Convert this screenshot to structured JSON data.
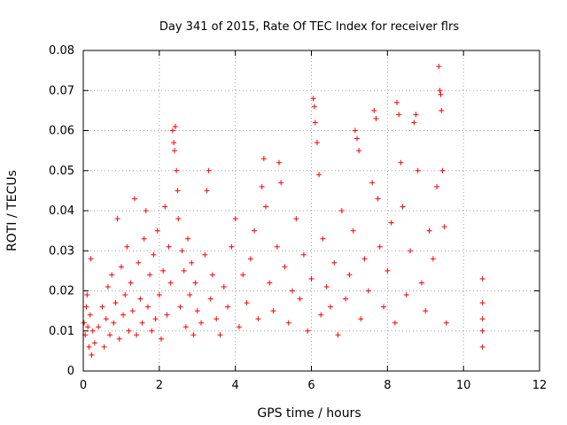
{
  "chart_data": {
    "type": "scatter",
    "title": "Day 341 of 2015, Rate Of TEC Index for receiver flrs",
    "xlabel": "GPS time / hours",
    "ylabel": "ROTI / TECUs",
    "xlim": [
      0,
      12
    ],
    "ylim": [
      0,
      0.08
    ],
    "xticks": [
      0,
      2,
      4,
      6,
      8,
      10,
      12
    ],
    "yticks": [
      0,
      0.01,
      0.02,
      0.03,
      0.04,
      0.05,
      0.06,
      0.07,
      0.08
    ],
    "xtick_labels": [
      "0",
      "2",
      "4",
      "6",
      "8",
      "10",
      "12"
    ],
    "ytick_labels": [
      "0",
      "0.01",
      "0.02",
      "0.03",
      "0.04",
      "0.05",
      "0.06",
      "0.07",
      "0.08"
    ],
    "grid": true,
    "marker": "+",
    "color": "#ff0000",
    "series": [
      {
        "name": "ROTI",
        "points": [
          [
            0.02,
            0.012
          ],
          [
            0.05,
            0.009
          ],
          [
            0.08,
            0.016
          ],
          [
            0.1,
            0.019
          ],
          [
            0.12,
            0.011
          ],
          [
            0.15,
            0.006
          ],
          [
            0.18,
            0.014
          ],
          [
            0.2,
            0.028
          ],
          [
            0.22,
            0.004
          ],
          [
            0.25,
            0.01
          ],
          [
            0.3,
            0.007
          ],
          [
            0.4,
            0.011
          ],
          [
            0.5,
            0.016
          ],
          [
            0.55,
            0.006
          ],
          [
            0.6,
            0.013
          ],
          [
            0.65,
            0.021
          ],
          [
            0.7,
            0.009
          ],
          [
            0.75,
            0.024
          ],
          [
            0.8,
            0.012
          ],
          [
            0.85,
            0.017
          ],
          [
            0.9,
            0.038
          ],
          [
            0.95,
            0.008
          ],
          [
            1.0,
            0.026
          ],
          [
            1.05,
            0.014
          ],
          [
            1.1,
            0.019
          ],
          [
            1.15,
            0.031
          ],
          [
            1.2,
            0.01
          ],
          [
            1.25,
            0.022
          ],
          [
            1.3,
            0.015
          ],
          [
            1.35,
            0.043
          ],
          [
            1.4,
            0.009
          ],
          [
            1.45,
            0.027
          ],
          [
            1.5,
            0.018
          ],
          [
            1.55,
            0.012
          ],
          [
            1.6,
            0.033
          ],
          [
            1.65,
            0.04
          ],
          [
            1.7,
            0.016
          ],
          [
            1.75,
            0.024
          ],
          [
            1.8,
            0.01
          ],
          [
            1.85,
            0.029
          ],
          [
            1.9,
            0.013
          ],
          [
            1.95,
            0.035
          ],
          [
            2.0,
            0.019
          ],
          [
            2.05,
            0.008
          ],
          [
            2.1,
            0.025
          ],
          [
            2.15,
            0.041
          ],
          [
            2.2,
            0.014
          ],
          [
            2.25,
            0.031
          ],
          [
            2.3,
            0.022
          ],
          [
            2.35,
            0.06
          ],
          [
            2.38,
            0.057
          ],
          [
            2.4,
            0.055
          ],
          [
            2.42,
            0.061
          ],
          [
            2.45,
            0.05
          ],
          [
            2.48,
            0.045
          ],
          [
            2.5,
            0.038
          ],
          [
            2.55,
            0.016
          ],
          [
            2.6,
            0.03
          ],
          [
            2.65,
            0.025
          ],
          [
            2.7,
            0.011
          ],
          [
            2.75,
            0.033
          ],
          [
            2.8,
            0.019
          ],
          [
            2.85,
            0.027
          ],
          [
            2.9,
            0.009
          ],
          [
            2.95,
            0.022
          ],
          [
            3.0,
            0.015
          ],
          [
            3.1,
            0.012
          ],
          [
            3.2,
            0.029
          ],
          [
            3.25,
            0.045
          ],
          [
            3.3,
            0.05
          ],
          [
            3.35,
            0.018
          ],
          [
            3.4,
            0.024
          ],
          [
            3.5,
            0.013
          ],
          [
            3.6,
            0.009
          ],
          [
            3.7,
            0.021
          ],
          [
            3.8,
            0.016
          ],
          [
            3.9,
            0.031
          ],
          [
            4.0,
            0.038
          ],
          [
            4.1,
            0.011
          ],
          [
            4.2,
            0.024
          ],
          [
            4.3,
            0.017
          ],
          [
            4.4,
            0.028
          ],
          [
            4.5,
            0.035
          ],
          [
            4.6,
            0.013
          ],
          [
            4.7,
            0.046
          ],
          [
            4.75,
            0.053
          ],
          [
            4.8,
            0.041
          ],
          [
            4.9,
            0.022
          ],
          [
            5.0,
            0.015
          ],
          [
            5.1,
            0.031
          ],
          [
            5.15,
            0.052
          ],
          [
            5.2,
            0.047
          ],
          [
            5.3,
            0.026
          ],
          [
            5.4,
            0.012
          ],
          [
            5.5,
            0.02
          ],
          [
            5.6,
            0.038
          ],
          [
            5.7,
            0.018
          ],
          [
            5.8,
            0.029
          ],
          [
            5.9,
            0.01
          ],
          [
            6.0,
            0.023
          ],
          [
            6.05,
            0.068
          ],
          [
            6.08,
            0.066
          ],
          [
            6.1,
            0.062
          ],
          [
            6.15,
            0.057
          ],
          [
            6.2,
            0.049
          ],
          [
            6.25,
            0.014
          ],
          [
            6.3,
            0.033
          ],
          [
            6.4,
            0.021
          ],
          [
            6.5,
            0.016
          ],
          [
            6.6,
            0.027
          ],
          [
            6.7,
            0.009
          ],
          [
            6.8,
            0.04
          ],
          [
            6.9,
            0.018
          ],
          [
            7.0,
            0.024
          ],
          [
            7.1,
            0.035
          ],
          [
            7.15,
            0.06
          ],
          [
            7.2,
            0.058
          ],
          [
            7.25,
            0.055
          ],
          [
            7.3,
            0.013
          ],
          [
            7.4,
            0.028
          ],
          [
            7.5,
            0.02
          ],
          [
            7.6,
            0.047
          ],
          [
            7.65,
            0.065
          ],
          [
            7.7,
            0.063
          ],
          [
            7.75,
            0.043
          ],
          [
            7.8,
            0.031
          ],
          [
            7.9,
            0.016
          ],
          [
            8.0,
            0.025
          ],
          [
            8.1,
            0.037
          ],
          [
            8.2,
            0.012
          ],
          [
            8.25,
            0.067
          ],
          [
            8.3,
            0.064
          ],
          [
            8.35,
            0.052
          ],
          [
            8.4,
            0.041
          ],
          [
            8.5,
            0.019
          ],
          [
            8.6,
            0.03
          ],
          [
            8.7,
            0.062
          ],
          [
            8.75,
            0.064
          ],
          [
            8.8,
            0.05
          ],
          [
            8.9,
            0.022
          ],
          [
            9.0,
            0.015
          ],
          [
            9.1,
            0.035
          ],
          [
            9.2,
            0.028
          ],
          [
            9.3,
            0.046
          ],
          [
            9.35,
            0.076
          ],
          [
            9.38,
            0.07
          ],
          [
            9.4,
            0.069
          ],
          [
            9.42,
            0.065
          ],
          [
            9.45,
            0.05
          ],
          [
            9.5,
            0.036
          ],
          [
            9.55,
            0.012
          ],
          [
            10.5,
            0.023
          ],
          [
            10.5,
            0.017
          ],
          [
            10.5,
            0.013
          ],
          [
            10.5,
            0.01
          ],
          [
            10.5,
            0.006
          ]
        ]
      }
    ]
  }
}
